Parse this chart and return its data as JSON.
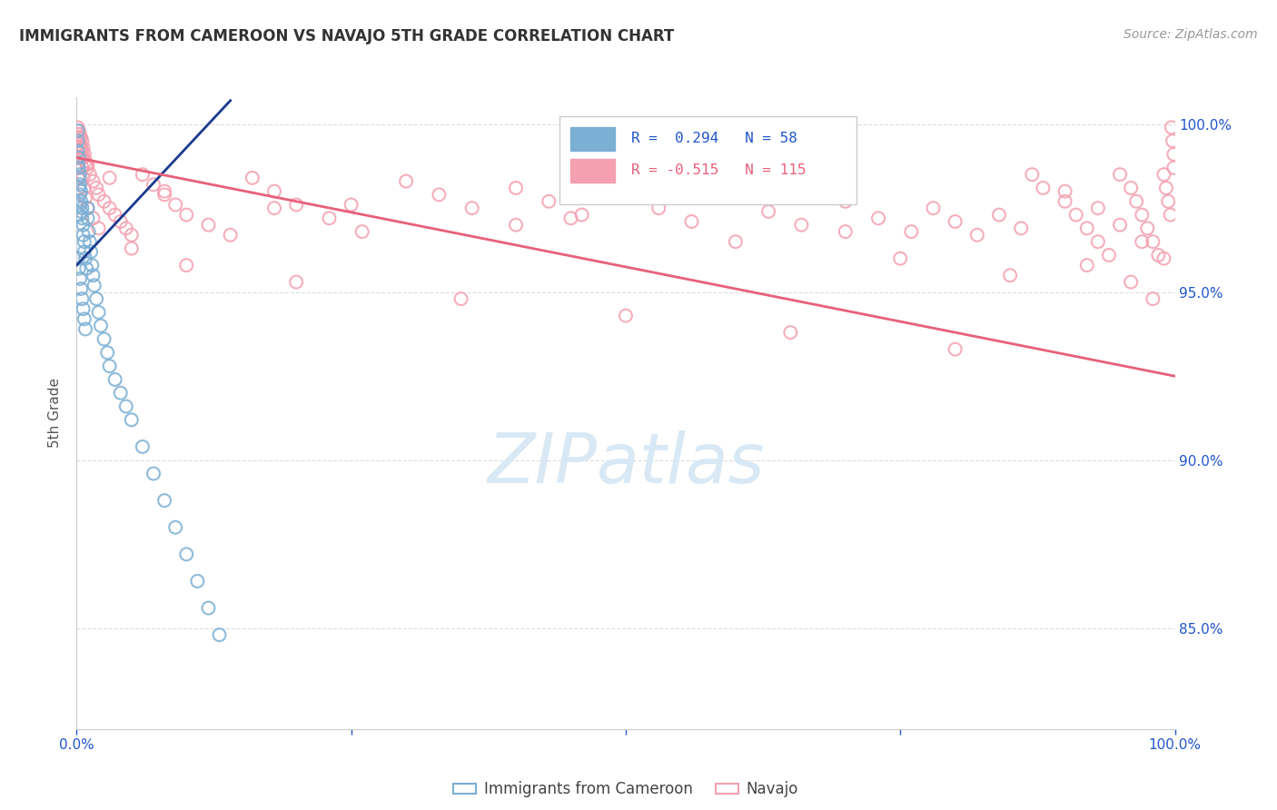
{
  "title": "IMMIGRANTS FROM CAMEROON VS NAVAJO 5TH GRADE CORRELATION CHART",
  "source": "Source: ZipAtlas.com",
  "ylabel": "5th Grade",
  "xlim": [
    0.0,
    1.0
  ],
  "ylim": [
    0.82,
    1.008
  ],
  "yticks": [
    0.85,
    0.9,
    0.95,
    1.0
  ],
  "ytick_labels": [
    "85.0%",
    "90.0%",
    "95.0%",
    "100.0%"
  ],
  "color_cameroon": "#7BAFD4",
  "color_navajo": "#F4A0B0",
  "color_line_cameroon": "#1A3A8F",
  "color_line_navajo": "#E8607A",
  "watermark_color": "#D8E8F4",
  "cam_x": [
    0.001,
    0.001,
    0.001,
    0.001,
    0.002,
    0.002,
    0.002,
    0.002,
    0.003,
    0.003,
    0.003,
    0.003,
    0.003,
    0.004,
    0.004,
    0.004,
    0.005,
    0.005,
    0.006,
    0.006,
    0.007,
    0.007,
    0.008,
    0.009,
    0.01,
    0.01,
    0.011,
    0.012,
    0.013,
    0.014,
    0.015,
    0.016,
    0.018,
    0.02,
    0.022,
    0.025,
    0.028,
    0.03,
    0.035,
    0.04,
    0.045,
    0.05,
    0.06,
    0.07,
    0.08,
    0.09,
    0.1,
    0.11,
    0.12,
    0.13,
    0.001,
    0.002,
    0.003,
    0.004,
    0.005,
    0.006,
    0.007,
    0.008
  ],
  "cam_y": [
    0.998,
    0.995,
    0.992,
    0.988,
    0.99,
    0.987,
    0.984,
    0.981,
    0.985,
    0.982,
    0.979,
    0.976,
    0.973,
    0.98,
    0.977,
    0.974,
    0.975,
    0.972,
    0.97,
    0.967,
    0.965,
    0.962,
    0.96,
    0.957,
    0.975,
    0.972,
    0.968,
    0.965,
    0.962,
    0.958,
    0.955,
    0.952,
    0.948,
    0.944,
    0.94,
    0.936,
    0.932,
    0.928,
    0.924,
    0.92,
    0.916,
    0.912,
    0.904,
    0.896,
    0.888,
    0.88,
    0.872,
    0.864,
    0.856,
    0.848,
    0.96,
    0.957,
    0.954,
    0.951,
    0.948,
    0.945,
    0.942,
    0.939
  ],
  "nav_x": [
    0.001,
    0.001,
    0.002,
    0.002,
    0.003,
    0.003,
    0.004,
    0.004,
    0.005,
    0.005,
    0.006,
    0.006,
    0.007,
    0.008,
    0.009,
    0.01,
    0.012,
    0.015,
    0.018,
    0.02,
    0.025,
    0.03,
    0.035,
    0.04,
    0.045,
    0.05,
    0.06,
    0.07,
    0.08,
    0.09,
    0.1,
    0.12,
    0.14,
    0.16,
    0.18,
    0.2,
    0.23,
    0.26,
    0.3,
    0.33,
    0.36,
    0.4,
    0.43,
    0.46,
    0.5,
    0.53,
    0.56,
    0.6,
    0.63,
    0.66,
    0.7,
    0.73,
    0.76,
    0.78,
    0.8,
    0.82,
    0.84,
    0.86,
    0.87,
    0.88,
    0.9,
    0.91,
    0.92,
    0.93,
    0.94,
    0.95,
    0.96,
    0.965,
    0.97,
    0.975,
    0.98,
    0.985,
    0.99,
    0.992,
    0.994,
    0.996,
    0.997,
    0.998,
    0.999,
    0.999,
    0.002,
    0.003,
    0.004,
    0.005,
    0.006,
    0.007,
    0.008,
    0.01,
    0.015,
    0.02,
    0.18,
    0.4,
    0.6,
    0.75,
    0.85,
    0.9,
    0.93,
    0.95,
    0.97,
    0.99,
    0.05,
    0.1,
    0.2,
    0.35,
    0.5,
    0.65,
    0.8,
    0.92,
    0.96,
    0.98,
    0.01,
    0.03,
    0.08,
    0.25,
    0.45,
    0.7
  ],
  "nav_y": [
    0.999,
    0.997,
    0.998,
    0.996,
    0.997,
    0.994,
    0.996,
    0.993,
    0.995,
    0.992,
    0.993,
    0.99,
    0.991,
    0.989,
    0.988,
    0.987,
    0.985,
    0.983,
    0.981,
    0.979,
    0.977,
    0.975,
    0.973,
    0.971,
    0.969,
    0.967,
    0.985,
    0.982,
    0.979,
    0.976,
    0.973,
    0.97,
    0.967,
    0.984,
    0.98,
    0.976,
    0.972,
    0.968,
    0.983,
    0.979,
    0.975,
    0.981,
    0.977,
    0.973,
    0.979,
    0.975,
    0.971,
    0.978,
    0.974,
    0.97,
    0.977,
    0.972,
    0.968,
    0.975,
    0.971,
    0.967,
    0.973,
    0.969,
    0.985,
    0.981,
    0.977,
    0.973,
    0.969,
    0.965,
    0.961,
    0.985,
    0.981,
    0.977,
    0.973,
    0.969,
    0.965,
    0.961,
    0.985,
    0.981,
    0.977,
    0.973,
    0.999,
    0.995,
    0.991,
    0.987,
    0.996,
    0.993,
    0.99,
    0.987,
    0.984,
    0.981,
    0.978,
    0.975,
    0.972,
    0.969,
    0.975,
    0.97,
    0.965,
    0.96,
    0.955,
    0.98,
    0.975,
    0.97,
    0.965,
    0.96,
    0.963,
    0.958,
    0.953,
    0.948,
    0.943,
    0.938,
    0.933,
    0.958,
    0.953,
    0.948,
    0.988,
    0.984,
    0.98,
    0.976,
    0.972,
    0.968
  ]
}
